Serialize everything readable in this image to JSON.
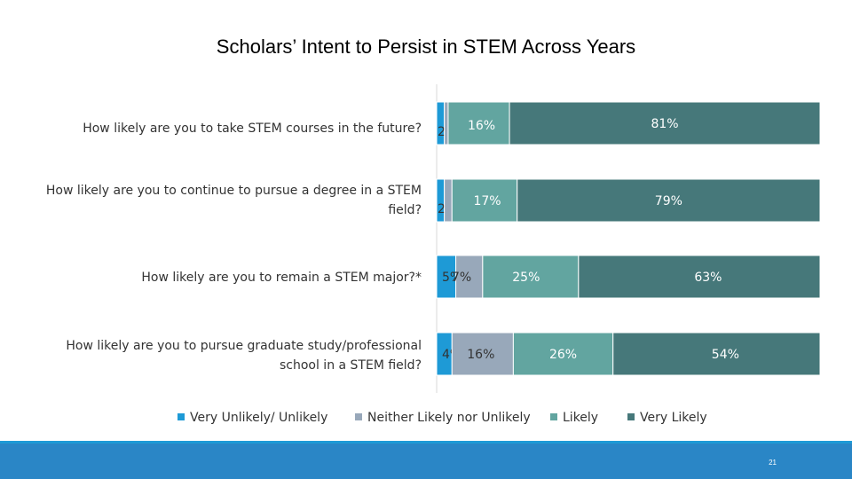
{
  "chart_data": {
    "type": "bar",
    "orientation": "horizontal",
    "stacked": true,
    "title": "Scholars’ Intent to Persist in STEM Across Years",
    "categories": [
      "How likely are you to take STEM courses in the future?",
      "How likely are you to continue to pursue a degree in a STEM field?",
      "How likely are you to remain a STEM major?*",
      "How likely are you to pursue graduate study/professional school in a STEM field?"
    ],
    "series": [
      {
        "name": "Very Unlikely/ Unlikely",
        "color": "#1e9ad6",
        "values": [
          2,
          2,
          5,
          4
        ],
        "labels": [
          "2%",
          "2%",
          "5%",
          "4%"
        ]
      },
      {
        "name": "Neither Likely nor Unlikely",
        "color": "#98a8ba",
        "values": [
          1,
          2,
          7,
          16
        ],
        "labels": [
          "1%",
          "2%",
          "7%",
          "16%"
        ]
      },
      {
        "name": "Likely",
        "color": "#62a5a0",
        "values": [
          16,
          17,
          25,
          26
        ],
        "labels": [
          "16%",
          "17%",
          "25%",
          "26%"
        ]
      },
      {
        "name": "Very Likely",
        "color": "#46787a",
        "values": [
          81,
          79,
          63,
          54
        ],
        "labels": [
          "81%",
          "79%",
          "63%",
          "54%"
        ]
      }
    ],
    "xlim": [
      0,
      100
    ],
    "legend_position": "bottom"
  },
  "footer": {
    "page_number": "21",
    "bar_color": "#2a86c6",
    "stripe_color": "#1e9ad6"
  }
}
